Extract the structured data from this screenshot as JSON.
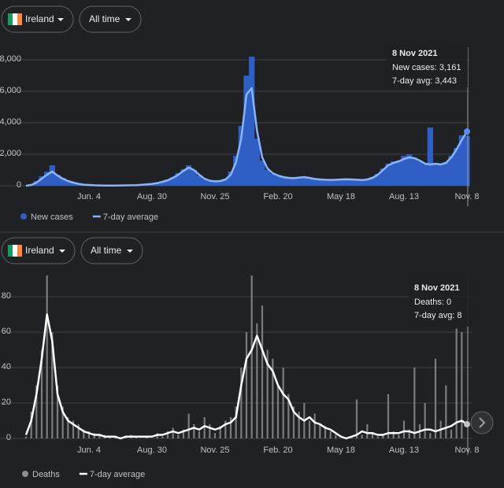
{
  "chart_data": [
    {
      "type": "bar",
      "filters": [
        "Ireland",
        "All time"
      ],
      "tooltip": {
        "title": "8 Nov 2021",
        "lines": [
          "New cases: 3,161",
          "7-day avg: 3,443"
        ]
      },
      "categories": [
        null,
        null,
        null,
        null,
        null,
        null,
        null,
        null,
        null,
        null,
        null,
        null,
        "Jun. 4",
        null,
        null,
        null,
        null,
        null,
        null,
        null,
        null,
        null,
        null,
        null,
        "Aug. 30",
        null,
        null,
        null,
        null,
        null,
        null,
        null,
        null,
        null,
        null,
        null,
        "Nov. 25",
        null,
        null,
        null,
        null,
        null,
        null,
        null,
        null,
        null,
        null,
        null,
        "Feb. 20",
        null,
        null,
        null,
        null,
        null,
        null,
        null,
        null,
        null,
        null,
        null,
        "May 18",
        null,
        null,
        null,
        null,
        null,
        null,
        null,
        null,
        null,
        null,
        null,
        "Aug. 13",
        null,
        null,
        null,
        null,
        null,
        null,
        null,
        null,
        null,
        null,
        null,
        "Nov. 8"
      ],
      "series": [
        {
          "name": "New cases",
          "type": "bar",
          "color": "#2f5fc4",
          "values": [
            0,
            80,
            300,
            600,
            900,
            1300,
            700,
            500,
            300,
            200,
            130,
            80,
            60,
            40,
            25,
            20,
            15,
            20,
            25,
            30,
            35,
            45,
            70,
            100,
            130,
            190,
            280,
            400,
            560,
            800,
            1050,
            1300,
            1000,
            650,
            420,
            300,
            270,
            320,
            450,
            900,
            1900,
            3800,
            7000,
            8200,
            3000,
            1600,
            1000,
            750,
            620,
            530,
            480,
            470,
            540,
            560,
            480,
            420,
            390,
            370,
            360,
            390,
            410,
            420,
            390,
            370,
            350,
            420,
            560,
            750,
            1100,
            1400,
            1550,
            1600,
            1900,
            2000,
            1800,
            1550,
            1350,
            3700,
            1400,
            1300,
            1500,
            1900,
            2400,
            3200,
            3161
          ]
        },
        {
          "name": "7-day average",
          "type": "line",
          "color": "#8ab4f8",
          "values": [
            0,
            50,
            200,
            450,
            700,
            900,
            650,
            450,
            300,
            200,
            120,
            70,
            50,
            30,
            20,
            15,
            15,
            15,
            20,
            25,
            30,
            40,
            60,
            90,
            120,
            170,
            250,
            350,
            500,
            700,
            950,
            1150,
            1000,
            700,
            450,
            320,
            280,
            300,
            400,
            700,
            1500,
            3000,
            5800,
            6200,
            3500,
            1800,
            1100,
            800,
            650,
            550,
            500,
            480,
            520,
            550,
            500,
            430,
            400,
            380,
            370,
            380,
            400,
            410,
            400,
            380,
            360,
            400,
            500,
            700,
            1000,
            1300,
            1450,
            1550,
            1700,
            1800,
            1750,
            1600,
            1400,
            1350,
            1400,
            1350,
            1450,
            1800,
            2300,
            2900,
            3443
          ]
        }
      ],
      "ylim": [
        0,
        8500
      ],
      "yticks": [
        0,
        {
          "value": 2000,
          "label": "2,000"
        },
        {
          "value": 4000,
          "label": "4,000"
        },
        {
          "value": 6000,
          "label": "6,000"
        },
        {
          "value": 8000,
          "label": "8,000"
        }
      ],
      "grid": true
    },
    {
      "type": "bar",
      "filters": [
        "Ireland",
        "All time"
      ],
      "tooltip": {
        "title": "8 Nov 2021",
        "lines": [
          "Deaths: 0",
          "7-day avg: 8"
        ]
      },
      "categories": [
        null,
        null,
        null,
        null,
        null,
        null,
        null,
        null,
        null,
        null,
        null,
        null,
        "Jun. 4",
        null,
        null,
        null,
        null,
        null,
        null,
        null,
        null,
        null,
        null,
        null,
        "Aug. 30",
        null,
        null,
        null,
        null,
        null,
        null,
        null,
        null,
        null,
        null,
        null,
        "Nov. 25",
        null,
        null,
        null,
        null,
        null,
        null,
        null,
        null,
        null,
        null,
        null,
        "Feb. 20",
        null,
        null,
        null,
        null,
        null,
        null,
        null,
        null,
        null,
        null,
        null,
        "May 18",
        null,
        null,
        null,
        null,
        null,
        null,
        null,
        null,
        null,
        null,
        null,
        "Aug. 13",
        null,
        null,
        null,
        null,
        null,
        null,
        null,
        null,
        null,
        null,
        null,
        "Nov. 8"
      ],
      "series": [
        {
          "name": "Deaths",
          "type": "bar",
          "color": "#8a8d91",
          "values": [
            1,
            15,
            30,
            50,
            92,
            60,
            30,
            18,
            12,
            10,
            8,
            5,
            4,
            3,
            2,
            2,
            1,
            1,
            0,
            1,
            2,
            1,
            0,
            1,
            0,
            3,
            1,
            4,
            6,
            2,
            5,
            14,
            8,
            4,
            12,
            8,
            3,
            7,
            10,
            12,
            18,
            40,
            60,
            92,
            65,
            75,
            50,
            45,
            30,
            40,
            25,
            18,
            15,
            20,
            10,
            14,
            8,
            7,
            4,
            2,
            0,
            0,
            1,
            22,
            2,
            8,
            3,
            1,
            2,
            25,
            4,
            2,
            10,
            5,
            40,
            8,
            20,
            3,
            45,
            10,
            30,
            5,
            62,
            60,
            0
          ]
        },
        {
          "name": "7-day average",
          "type": "line",
          "color": "#ffffff",
          "values": [
            2,
            10,
            25,
            45,
            70,
            55,
            25,
            15,
            10,
            8,
            6,
            4,
            3,
            2,
            2,
            1,
            1,
            1,
            0,
            1,
            1,
            1,
            1,
            1,
            1,
            2,
            2,
            3,
            4,
            3,
            4,
            5,
            6,
            5,
            7,
            6,
            5,
            6,
            8,
            9,
            12,
            30,
            45,
            50,
            58,
            50,
            42,
            38,
            30,
            25,
            22,
            15,
            12,
            10,
            12,
            9,
            8,
            6,
            5,
            3,
            1,
            0,
            1,
            2,
            4,
            3,
            3,
            2,
            2,
            3,
            3,
            3,
            4,
            4,
            3,
            4,
            5,
            5,
            4,
            5,
            6,
            7,
            9,
            10,
            8
          ]
        }
      ],
      "ylim": [
        0,
        95
      ],
      "yticks": [
        0,
        20,
        40,
        60,
        80
      ],
      "grid": true
    }
  ]
}
